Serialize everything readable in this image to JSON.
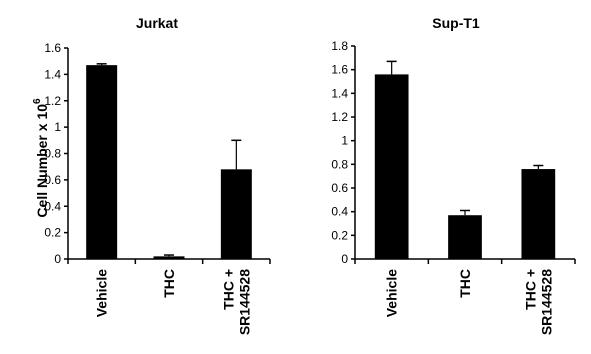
{
  "chart_data": [
    {
      "type": "bar",
      "title": "Jurkat",
      "ylabel": "Cell Number x 10",
      "ylabel_exponent": "6",
      "categories": [
        "Vehicle",
        "THC",
        "THC +\nSR144528"
      ],
      "values": [
        1.47,
        0.02,
        0.68
      ],
      "errors": [
        0.01,
        0.01,
        0.22
      ],
      "ylim": [
        0,
        1.6
      ],
      "yticks": [
        "0",
        "0.2",
        "0.4",
        "0.6",
        "0.8",
        "1",
        "1.2",
        "1.4",
        "1.6"
      ],
      "bar_color": "#000000",
      "grid": false
    },
    {
      "type": "bar",
      "title": "Sup-T1",
      "ylabel": "",
      "categories": [
        "Vehicle",
        "THC",
        "THC +\nSR144528"
      ],
      "values": [
        1.56,
        0.37,
        0.76
      ],
      "errors": [
        0.11,
        0.04,
        0.03
      ],
      "ylim": [
        0,
        1.8
      ],
      "yticks": [
        "0",
        "0.2",
        "0.4",
        "0.6",
        "0.8",
        "1",
        "1.2",
        "1.4",
        "1.6",
        "1.8"
      ],
      "bar_color": "#000000",
      "grid": false
    }
  ]
}
